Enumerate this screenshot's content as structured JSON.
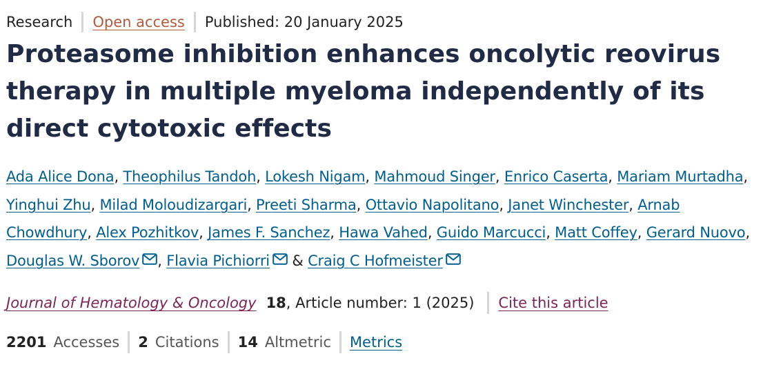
{
  "header": {
    "article_type": "Research",
    "open_access": "Open access",
    "published": "Published: 20 January 2025"
  },
  "title": {
    "line1": "Proteasome inhibition enhances oncolytic reovirus",
    "line2": "therapy in multiple myeloma independently of its",
    "line3": "direct cytotoxic effects"
  },
  "authors": {
    "names": [
      "Ada Alice Dona",
      "Theophilus Tandoh",
      "Lokesh Nigam",
      "Mahmoud Singer",
      "Enrico Caserta",
      "Mariam Murtadha",
      "Yinghui Zhu",
      "Milad Moloudizargari",
      "Preeti Sharma",
      "Ottavio Napolitano",
      "Janet Winchester",
      "Arnab",
      "Chowdhury",
      "Alex Pozhitkov",
      "James F. Sanchez",
      "Hawa Vahed",
      "Guido Marcucci",
      "Matt Coffey",
      "Gerard Nuovo",
      "Douglas W. Sborov",
      "Flavia Pichiorri",
      "Craig C Hofmeister"
    ],
    "comma": ",",
    "ampersand": "&",
    "mail_icon": "envelope-icon"
  },
  "citation": {
    "journal": "Journal of Hematology & Oncology",
    "volume": "18",
    "article_info": ", Article number: 1 (2025)",
    "cite_link": "Cite this article"
  },
  "metrics": {
    "accesses_count": "2201",
    "accesses_label": "Accesses",
    "citations_count": "2",
    "citations_label": "Citations",
    "altmetric_count": "14",
    "altmetric_label": "Altmetric",
    "metrics_link": "Metrics"
  },
  "colors": {
    "title": "#222b45",
    "link_blue": "#025e8d",
    "link_purple": "#7c2657",
    "open_access": "#b45a3c",
    "separator": "#d6d6d6"
  }
}
